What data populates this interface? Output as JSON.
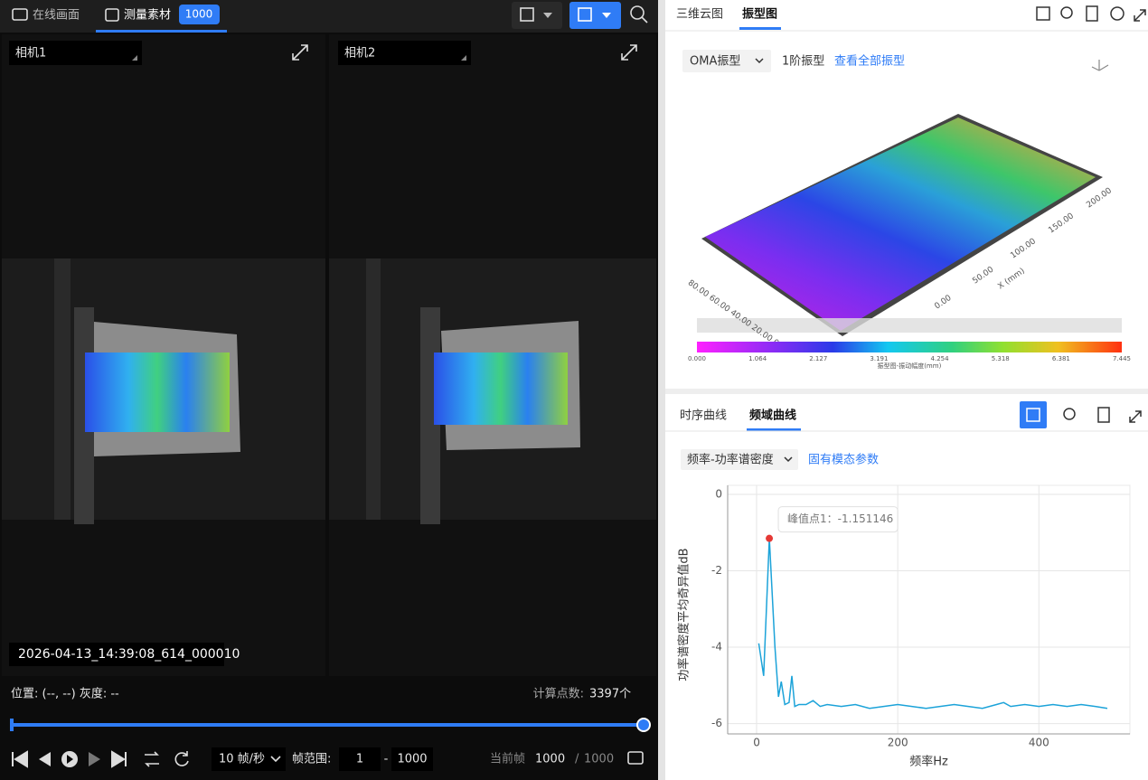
{
  "left": {
    "tabs": [
      "在线画面",
      "测量素材"
    ],
    "badge": "1000",
    "cameras": [
      "相机1",
      "相机2"
    ],
    "timestamp": "2026-04-13_14:39:08_614_000010",
    "position": "位置: (--, --) 灰度: --",
    "points_label": "计算点数:",
    "points_value": "3397个",
    "fps": "10 帧/秒",
    "range_label": "帧范围:",
    "range_start": "1",
    "range_sep": "-",
    "range_end": "1000",
    "current_label": "当前帧",
    "current": "1000",
    "slash": "/",
    "total": "1000"
  },
  "right": {
    "tabs": [
      "三维云图",
      "振型图"
    ],
    "mode": "OMA振型",
    "order": "1阶振型",
    "link": "查看全部振型",
    "x_axis_label": "X (mm)",
    "x_axis_ticks": [
      "0.00",
      "50.00",
      "100.00",
      "150.00",
      "200.00"
    ],
    "y_axis_ticks": "80.00 60.00 40.00 20.00 0.00",
    "colorbar_ticks": [
      "0.000",
      "1.064",
      "2.127",
      "3.191",
      "4.254",
      "5.318",
      "6.381",
      "7.445"
    ],
    "colorbar_title": "振型图-振动幅度(mm)",
    "curve_tabs": [
      "时序曲线",
      "频域曲线"
    ],
    "curve_mode": "频率-功率谱密度",
    "curve_link": "固有模态参数"
  },
  "chart_data": {
    "type": "line",
    "x_label": "频率Hz",
    "y_label": "功率谱密度平均奇异值dB",
    "annotation": "峰值点1：-1.151146",
    "color": "#1ca3d9",
    "x": [
      3,
      10,
      18,
      26,
      31,
      35,
      40,
      46,
      50,
      54,
      60,
      70,
      80,
      90,
      100,
      120,
      140,
      160,
      180,
      200,
      220,
      240,
      260,
      280,
      300,
      320,
      340,
      350,
      360,
      380,
      400,
      420,
      440,
      460,
      480,
      497
    ],
    "values": [
      -3.9,
      -4.75,
      -1.151146,
      -4.0,
      -5.3,
      -4.9,
      -5.5,
      -5.45,
      -4.75,
      -5.55,
      -5.5,
      -5.5,
      -5.4,
      -5.55,
      -5.5,
      -5.55,
      -5.5,
      -5.6,
      -5.55,
      -5.5,
      -5.55,
      -5.6,
      -5.55,
      -5.5,
      -5.55,
      -5.6,
      -5.5,
      -5.45,
      -5.55,
      -5.5,
      -5.55,
      -5.5,
      -5.55,
      -5.5,
      -5.55,
      -5.6
    ],
    "xlim": [
      -41,
      529
    ],
    "ylim": [
      -6.27,
      0
    ],
    "xticks": [
      0,
      200,
      400
    ],
    "yticks": [
      0,
      -2,
      -4,
      -6
    ],
    "grid": true
  }
}
